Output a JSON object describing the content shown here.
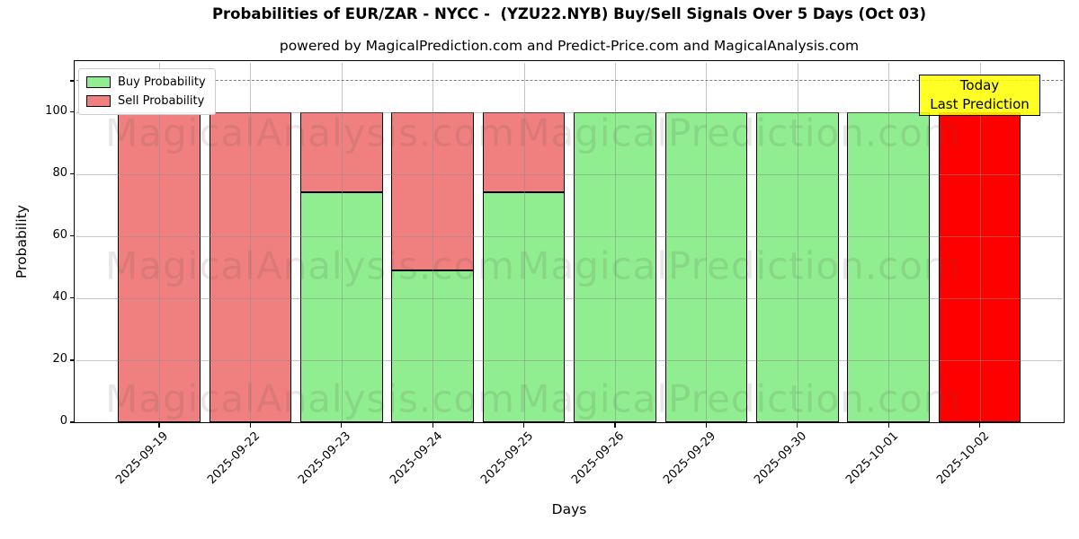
{
  "chart_data": {
    "type": "bar",
    "stacked": true,
    "title": "Probabilities of EUR/ZAR - NYCC -  (YZU22.NYB) Buy/Sell Signals Over 5 Days (Oct 03)",
    "subtitle": "powered by MagicalPrediction.com and Predict-Price.com and MagicalAnalysis.com",
    "xlabel": "Days",
    "ylabel": "Probability",
    "ylim": [
      0,
      116
    ],
    "yticks": [
      0,
      20,
      40,
      60,
      80,
      100
    ],
    "extra_unlabeled_ytick": 110,
    "grid": true,
    "legend_position": "upper-left",
    "categories": [
      "2025-09-19",
      "2025-09-22",
      "2025-09-23",
      "2025-09-24",
      "2025-09-25",
      "2025-09-26",
      "2025-09-29",
      "2025-09-30",
      "2025-10-01",
      "2025-10-02"
    ],
    "series": [
      {
        "name": "Buy Probability",
        "color": "#90EE90",
        "values": [
          0,
          0,
          74,
          49,
          74,
          100,
          100,
          100,
          100,
          0
        ]
      },
      {
        "name": "Sell Probability",
        "color": "#F08080",
        "values": [
          100,
          100,
          26,
          51,
          26,
          0,
          0,
          0,
          0,
          100
        ]
      }
    ],
    "today_index": 9,
    "today_color": "#FF0000",
    "threshold_line": {
      "y": 110,
      "style": "dashed",
      "color": "#7f7f7f"
    },
    "annotation": {
      "lines": [
        "Today",
        "Last Prediction"
      ],
      "bg": "#FFFF00"
    },
    "watermarks": {
      "left": "MagicalAnalysis.com",
      "right": "MagicalPrediction.com"
    }
  }
}
